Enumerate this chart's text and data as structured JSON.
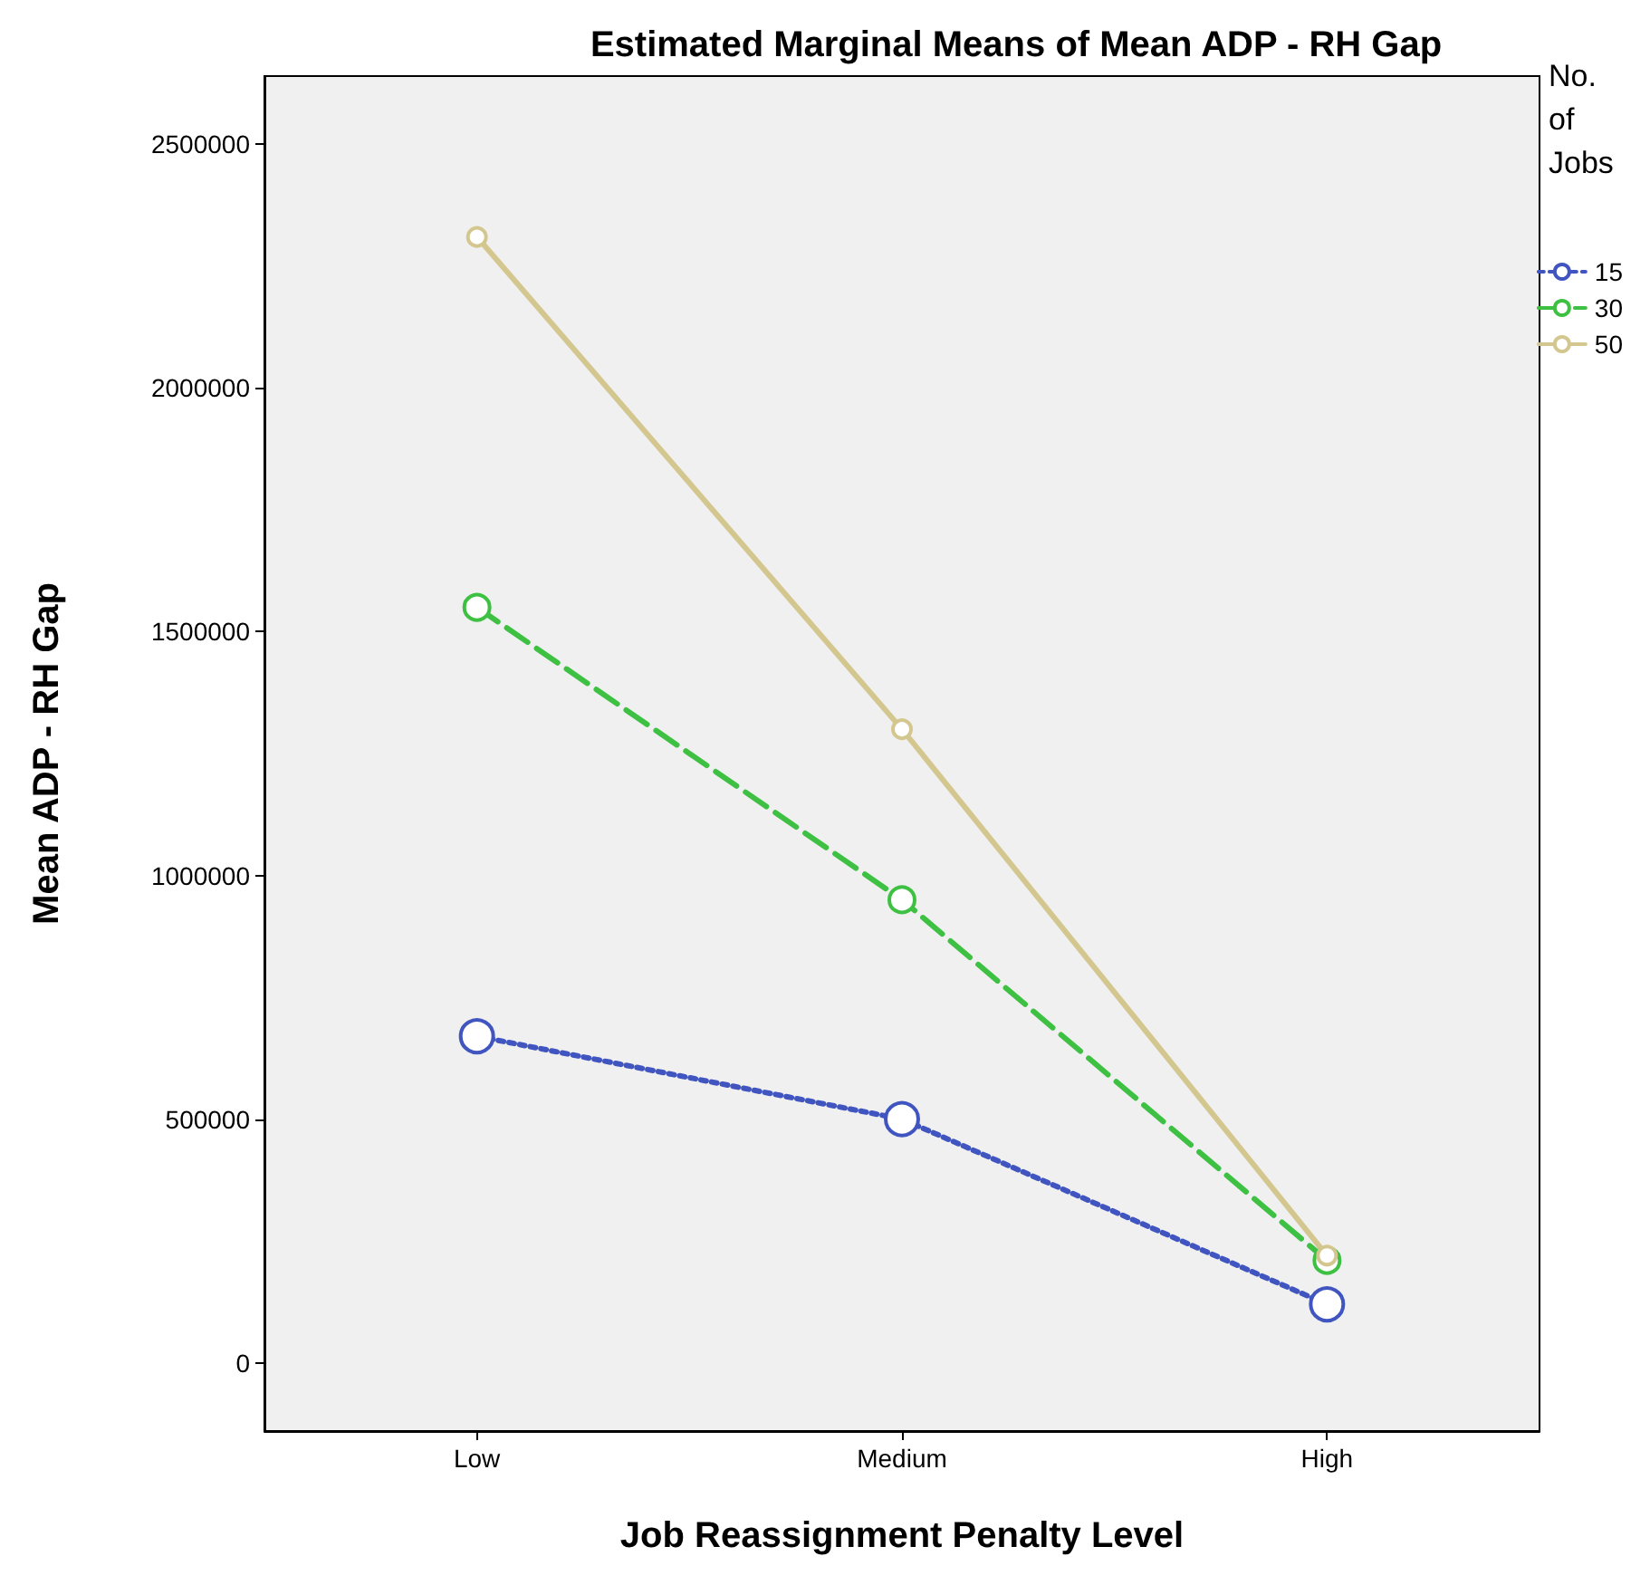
{
  "chart_data": {
    "type": "line",
    "title": "Estimated Marginal Means of Mean ADP - RH Gap",
    "xlabel": "Job Reassignment Penalty Level",
    "ylabel": "Mean ADP - RH Gap",
    "legend_title": "No. of Jobs",
    "categories": [
      "Low",
      "Medium",
      "High"
    ],
    "series": [
      {
        "name": "15",
        "color": "#4055c0",
        "line_style": "dotted",
        "values": [
          670000,
          500000,
          120000
        ]
      },
      {
        "name": "30",
        "color": "#3ec043",
        "line_style": "dashed",
        "values": [
          1550000,
          950000,
          210000
        ]
      },
      {
        "name": "50",
        "color": "#d3c78f",
        "line_style": "solid",
        "values": [
          2310000,
          1300000,
          220000
        ]
      }
    ],
    "ylim": [
      -140000,
      2640000
    ],
    "yticks": [
      0,
      500000,
      1000000,
      1500000,
      2000000,
      2500000
    ],
    "grid": false,
    "legend": "top right",
    "marker": "circle"
  }
}
